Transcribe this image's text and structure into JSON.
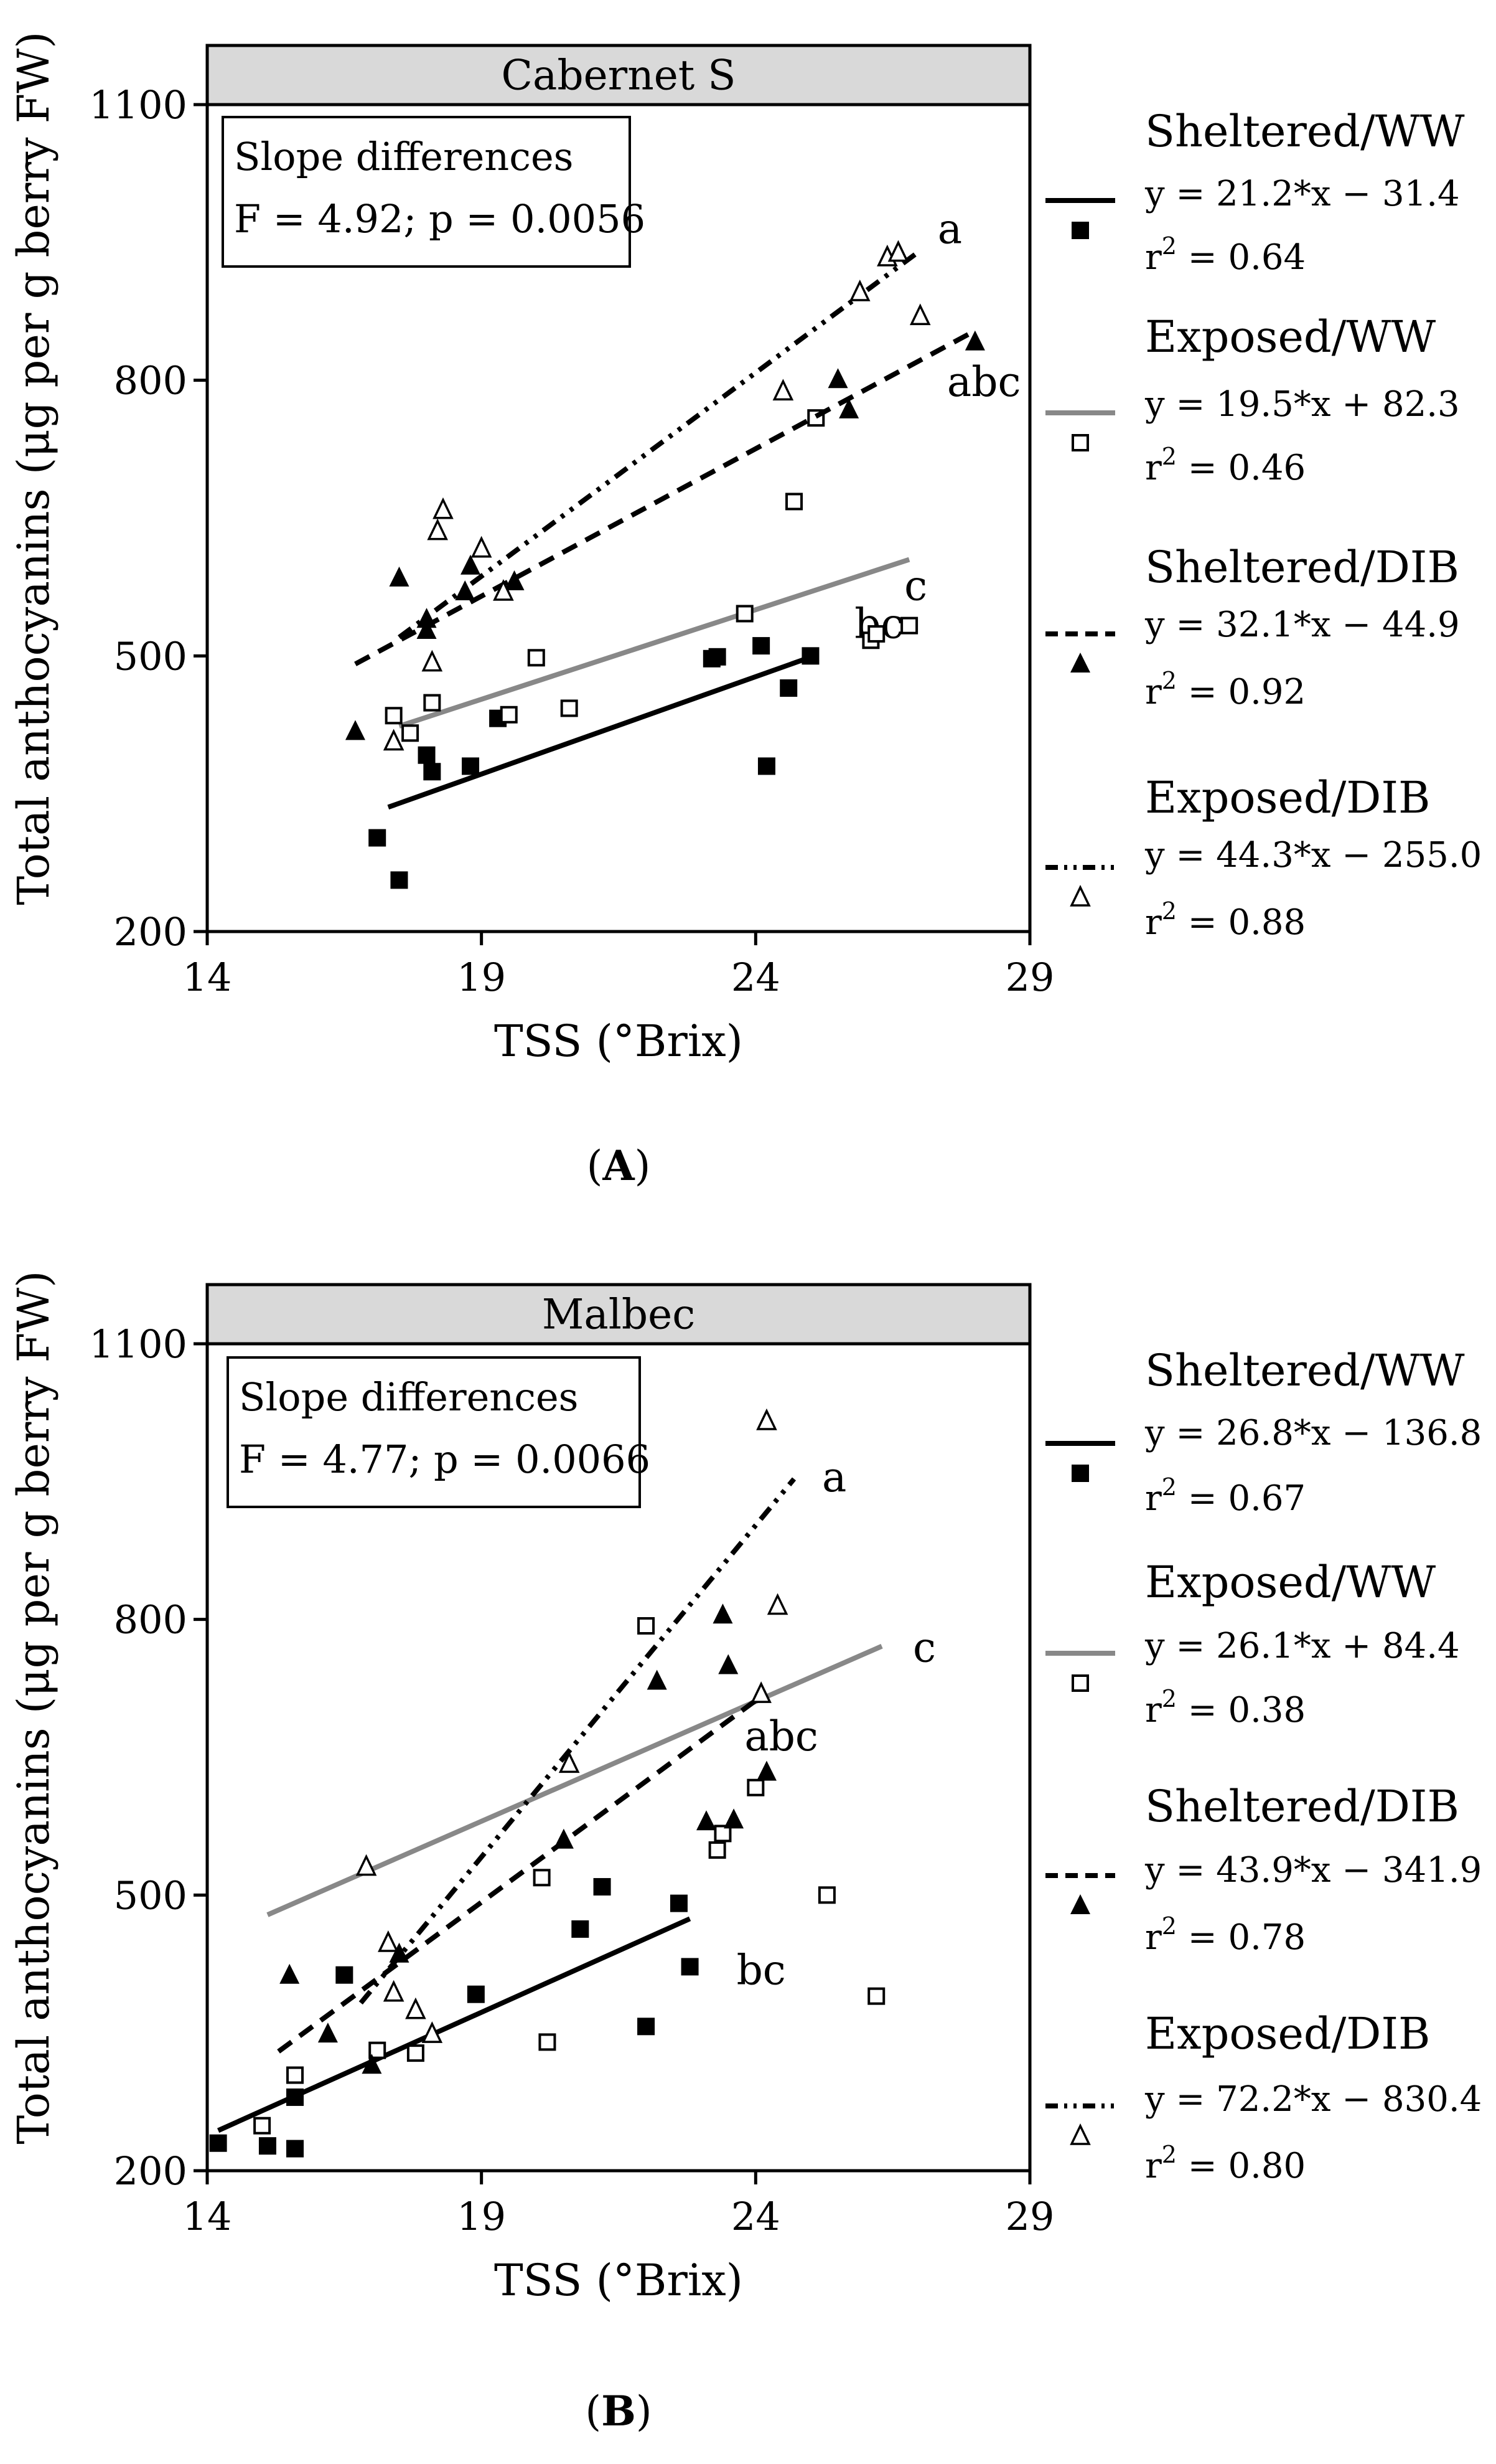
{
  "chart_data": [
    {
      "type": "scatter",
      "title": "Cabernet S",
      "xlabel": "TSS (°Brix)",
      "ylabel": "Total anthocyanins (μg per g berry FW)",
      "xlim": [
        14,
        29
      ],
      "ylim": [
        200,
        1100
      ],
      "xticks": [
        "14",
        "19",
        "24",
        "29"
      ],
      "yticks": [
        "200",
        "500",
        "800",
        "1100"
      ],
      "caption_letter": "A",
      "slope_box": {
        "title": "Slope differences",
        "stat": "F = 4.92; p = 0.0056"
      },
      "series": [
        {
          "name": "Sheltered/WW",
          "marker": "square-filled",
          "line": "solid-black",
          "equation": "y = 21.2*x − 31.4",
          "r2_prefix": "r",
          "r2_suffix": " = 0.64",
          "group_label": "bc",
          "slope": 21.2,
          "intercept": -31.4,
          "xrange": [
            17.3,
            25.1
          ],
          "points": [
            [
              17.1,
              302
            ],
            [
              17.5,
              256
            ],
            [
              18.0,
              392
            ],
            [
              18.1,
              374
            ],
            [
              18.8,
              380
            ],
            [
              19.3,
              432
            ],
            [
              23.2,
              497
            ],
            [
              23.3,
              499
            ],
            [
              24.1,
              511
            ],
            [
              24.2,
              380
            ],
            [
              24.6,
              465
            ],
            [
              25.0,
              500
            ]
          ]
        },
        {
          "name": "Exposed/WW",
          "marker": "square-open",
          "line": "solid-gray",
          "equation": "y = 19.5*x + 82.3",
          "r2_prefix": "r",
          "r2_suffix": " = 0.46",
          "group_label": "c",
          "slope": 19.5,
          "intercept": 82.3,
          "xrange": [
            17.5,
            26.8
          ],
          "points": [
            [
              17.4,
              435
            ],
            [
              17.7,
              416
            ],
            [
              18.1,
              449
            ],
            [
              19.5,
              436
            ],
            [
              20.0,
              498
            ],
            [
              20.6,
              443
            ],
            [
              23.8,
              546
            ],
            [
              24.7,
              668
            ],
            [
              25.1,
              759
            ],
            [
              26.1,
              517
            ],
            [
              26.2,
              524
            ],
            [
              26.8,
              533
            ]
          ]
        },
        {
          "name": "Sheltered/DIB",
          "marker": "triangle-filled",
          "line": "dashed",
          "equation": "y = 32.1*x − 44.9",
          "r2_prefix": "r",
          "r2_suffix": " = 0.92",
          "group_label": "abc",
          "slope": 32.1,
          "intercept": -44.9,
          "xrange": [
            16.7,
            28.0
          ],
          "points": [
            [
              16.7,
              418
            ],
            [
              17.5,
              585
            ],
            [
              18.0,
              528
            ],
            [
              18.0,
              540
            ],
            [
              18.7,
              570
            ],
            [
              18.8,
              598
            ],
            [
              19.6,
              581
            ],
            [
              25.5,
              801
            ],
            [
              25.7,
              768
            ],
            [
              28.0,
              842
            ]
          ]
        },
        {
          "name": "Exposed/DIB",
          "marker": "triangle-open",
          "line": "dash-dot-dot",
          "equation": "y = 44.3*x − 255.0",
          "r2_prefix": "r",
          "r2_suffix": " = 0.88",
          "group_label": "a",
          "slope": 44.3,
          "intercept": -255.0,
          "xrange": [
            17.5,
            27.0
          ],
          "points": [
            [
              17.4,
              407
            ],
            [
              18.1,
              493
            ],
            [
              18.2,
              636
            ],
            [
              18.3,
              659
            ],
            [
              19.0,
              617
            ],
            [
              19.4,
              570
            ],
            [
              24.5,
              788
            ],
            [
              25.9,
              896
            ],
            [
              26.4,
              934
            ],
            [
              26.6,
              939
            ],
            [
              27.0,
              870
            ]
          ]
        }
      ]
    },
    {
      "type": "scatter",
      "title": "Malbec",
      "xlabel": "TSS (°Brix)",
      "ylabel": "Total anthocyanins (μg per g berry FW)",
      "xlim": [
        14,
        29
      ],
      "ylim": [
        200,
        1100
      ],
      "xticks": [
        "14",
        "19",
        "24",
        "29"
      ],
      "yticks": [
        "200",
        "500",
        "800",
        "1100"
      ],
      "caption_letter": "B",
      "slope_box": {
        "title": "Slope differences",
        "stat": "F = 4.77; p = 0.0066"
      },
      "series": [
        {
          "name": "Sheltered/WW",
          "marker": "square-filled",
          "line": "solid-black",
          "equation": "y = 26.8*x − 136.8",
          "r2_prefix": "r",
          "r2_suffix": " = 0.67",
          "group_label": "bc",
          "slope": 26.8,
          "intercept": -136.8,
          "xrange": [
            14.2,
            22.8
          ],
          "points": [
            [
              14.2,
              230
            ],
            [
              15.1,
              227
            ],
            [
              15.6,
              224
            ],
            [
              15.6,
              280
            ],
            [
              16.5,
              413
            ],
            [
              18.9,
              392
            ],
            [
              20.8,
              463
            ],
            [
              21.2,
              509
            ],
            [
              22.0,
              357
            ],
            [
              22.6,
              491
            ],
            [
              22.8,
              422
            ]
          ]
        },
        {
          "name": "Exposed/WW",
          "marker": "square-open",
          "line": "solid-gray",
          "equation": "y = 26.1*x + 84.4",
          "r2_prefix": "r",
          "r2_suffix": " = 0.38",
          "group_label": "c",
          "slope": 26.1,
          "intercept": 84.4,
          "xrange": [
            15.1,
            26.3
          ],
          "points": [
            [
              15.0,
              249
            ],
            [
              15.6,
              304
            ],
            [
              17.1,
              331
            ],
            [
              17.8,
              328
            ],
            [
              20.1,
              519
            ],
            [
              20.2,
              340
            ],
            [
              22.0,
              793
            ],
            [
              23.3,
              549
            ],
            [
              23.4,
              567
            ],
            [
              24.0,
              617
            ],
            [
              25.3,
              500
            ],
            [
              26.2,
              390
            ]
          ]
        },
        {
          "name": "Sheltered/DIB",
          "marker": "triangle-filled",
          "line": "dashed",
          "equation": "y = 43.9*x − 341.9",
          "r2_prefix": "r",
          "r2_suffix": " = 0.78",
          "group_label": "abc",
          "slope": 43.9,
          "intercept": -341.9,
          "xrange": [
            15.3,
            24.0
          ],
          "points": [
            [
              15.5,
              413
            ],
            [
              16.2,
              349
            ],
            [
              17.0,
              315
            ],
            [
              17.5,
              436
            ],
            [
              20.5,
              560
            ],
            [
              22.2,
              733
            ],
            [
              23.1,
              580
            ],
            [
              23.4,
              805
            ],
            [
              23.6,
              582
            ],
            [
              24.2,
              634
            ],
            [
              23.5,
              750
            ]
          ]
        },
        {
          "name": "Exposed/DIB",
          "marker": "triangle-open",
          "line": "dash-dot-dot",
          "equation": "y = 72.2*x − 830.4",
          "r2_prefix": "r",
          "r2_suffix": " = 0.80",
          "group_label": "a",
          "slope": 72.2,
          "intercept": -830.4,
          "xrange": [
            16.8,
            24.7
          ],
          "points": [
            [
              16.9,
              531
            ],
            [
              17.3,
              448
            ],
            [
              17.4,
              394
            ],
            [
              17.8,
              375
            ],
            [
              18.1,
              349
            ],
            [
              20.6,
              643
            ],
            [
              24.1,
              719
            ],
            [
              24.2,
              1016
            ],
            [
              24.4,
              815
            ]
          ]
        }
      ]
    }
  ]
}
